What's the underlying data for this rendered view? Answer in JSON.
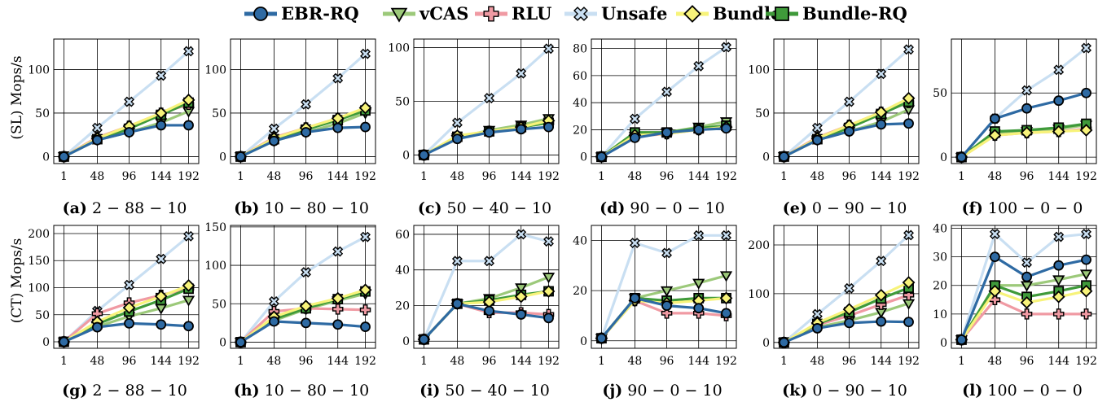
{
  "legend": [
    {
      "name": "EBR-RQ",
      "color": "#2e6aa3",
      "marker": "circle"
    },
    {
      "name": "vCAS",
      "color": "#9cc97a",
      "marker": "triangle-down"
    },
    {
      "name": "RLU",
      "color": "#f09aa3",
      "marker": "plus"
    },
    {
      "name": "Unsafe",
      "color": "#c9dff2",
      "marker": "x-cross"
    },
    {
      "name": "Bundle",
      "color": "#f7f37a",
      "marker": "diamond"
    },
    {
      "name": "Bundle-RQ",
      "color": "#3f9a3a",
      "marker": "square"
    }
  ],
  "row_labels": [
    "(SL)  Mops/s",
    "(CT)  Mops/s"
  ],
  "chart_data": [
    {
      "type": "line",
      "caption_letter": "(a)",
      "caption_text": "2 − 88 − 10",
      "categories": [
        "1",
        "48",
        "96",
        "144",
        "192"
      ],
      "ylim": [
        -8,
        135
      ],
      "yticks": [
        0,
        50,
        100
      ],
      "series": [
        {
          "name": "EBR-RQ",
          "values": [
            0,
            19,
            28,
            36,
            36
          ]
        },
        {
          "name": "vCAS",
          "values": [
            0,
            19,
            28,
            39,
            52
          ]
        },
        {
          "name": "RLU",
          "values": [
            0,
            22,
            35,
            50,
            60
          ]
        },
        {
          "name": "Unsafe",
          "values": [
            0,
            33,
            63,
            93,
            121
          ]
        },
        {
          "name": "Bundle",
          "values": [
            0,
            21,
            35,
            50,
            65
          ]
        },
        {
          "name": "Bundle-RQ",
          "values": [
            0,
            20,
            32,
            48,
            62
          ]
        }
      ]
    },
    {
      "type": "line",
      "caption_letter": "(b)",
      "caption_text": "10 − 80 − 10",
      "categories": [
        "1",
        "48",
        "96",
        "144",
        "192"
      ],
      "ylim": [
        -8,
        135
      ],
      "yticks": [
        0,
        50,
        100
      ],
      "series": [
        {
          "name": "EBR-RQ",
          "values": [
            0,
            18,
            28,
            33,
            34
          ]
        },
        {
          "name": "vCAS",
          "values": [
            0,
            18,
            28,
            38,
            50
          ]
        },
        {
          "name": "RLU",
          "values": [
            0,
            22,
            33,
            44,
            54
          ]
        },
        {
          "name": "Unsafe",
          "values": [
            0,
            32,
            60,
            90,
            118
          ]
        },
        {
          "name": "Bundle",
          "values": [
            0,
            21,
            33,
            44,
            56
          ]
        },
        {
          "name": "Bundle-RQ",
          "values": [
            0,
            20,
            31,
            42,
            53
          ]
        }
      ]
    },
    {
      "type": "line",
      "caption_letter": "(c)",
      "caption_text": "50 − 40 − 10",
      "categories": [
        "1",
        "48",
        "96",
        "144",
        "192"
      ],
      "ylim": [
        -8,
        108
      ],
      "yticks": [
        0,
        50,
        100
      ],
      "series": [
        {
          "name": "EBR-RQ",
          "values": [
            0,
            15,
            21,
            24,
            26
          ]
        },
        {
          "name": "vCAS",
          "values": [
            0,
            16,
            23,
            28,
            34
          ]
        },
        {
          "name": "RLU",
          "values": [
            0,
            17,
            22,
            26,
            30
          ]
        },
        {
          "name": "Unsafe",
          "values": [
            0,
            30,
            53,
            76,
            99
          ]
        },
        {
          "name": "Bundle",
          "values": [
            0,
            18,
            22,
            26,
            32
          ]
        },
        {
          "name": "Bundle-RQ",
          "values": [
            0,
            17,
            22,
            26,
            30
          ]
        }
      ]
    },
    {
      "type": "line",
      "caption_letter": "(d)",
      "caption_text": "90 − 0 − 10",
      "categories": [
        "1",
        "48",
        "96",
        "144",
        "192"
      ],
      "ylim": [
        -5,
        87
      ],
      "yticks": [
        0,
        20,
        40,
        60,
        80
      ],
      "series": [
        {
          "name": "EBR-RQ",
          "values": [
            0,
            14,
            18,
            20,
            21
          ]
        },
        {
          "name": "vCAS",
          "values": [
            0,
            15,
            18,
            22,
            26
          ]
        },
        {
          "name": "RLU",
          "values": [
            0,
            15,
            17,
            20,
            22
          ]
        },
        {
          "name": "Unsafe",
          "values": [
            0,
            28,
            48,
            67,
            81
          ]
        },
        {
          "name": "Bundle",
          "values": [
            0,
            16,
            17,
            20,
            22
          ]
        },
        {
          "name": "Bundle-RQ",
          "values": [
            0,
            18,
            18,
            21,
            23
          ]
        }
      ]
    },
    {
      "type": "line",
      "caption_letter": "(e)",
      "caption_text": "0 − 90 − 10",
      "categories": [
        "1",
        "48",
        "96",
        "144",
        "192"
      ],
      "ylim": [
        -8,
        135
      ],
      "yticks": [
        0,
        50,
        100
      ],
      "series": [
        {
          "name": "EBR-RQ",
          "values": [
            0,
            19,
            29,
            37,
            38
          ]
        },
        {
          "name": "vCAS",
          "values": [
            0,
            19,
            29,
            40,
            54
          ]
        },
        {
          "name": "RLU",
          "values": [
            0,
            22,
            36,
            51,
            62
          ]
        },
        {
          "name": "Unsafe",
          "values": [
            0,
            33,
            63,
            95,
            123
          ]
        },
        {
          "name": "Bundle",
          "values": [
            0,
            21,
            36,
            51,
            67
          ]
        },
        {
          "name": "Bundle-RQ",
          "values": [
            0,
            20,
            33,
            49,
            63
          ]
        }
      ]
    },
    {
      "type": "line",
      "caption_letter": "(f)",
      "caption_text": "100 − 0 − 0",
      "categories": [
        "1",
        "48",
        "96",
        "144",
        "192"
      ],
      "ylim": [
        -5,
        92
      ],
      "yticks": [
        0,
        50
      ],
      "series": [
        {
          "name": "EBR-RQ",
          "values": [
            0,
            30,
            38,
            44,
            50
          ]
        },
        {
          "name": "vCAS",
          "values": [
            0,
            18,
            20,
            22,
            25
          ]
        },
        {
          "name": "RLU",
          "values": [
            0,
            17,
            19,
            20,
            22
          ]
        },
        {
          "name": "Unsafe",
          "values": [
            0,
            30,
            52,
            68,
            85
          ]
        },
        {
          "name": "Bundle",
          "values": [
            0,
            17,
            19,
            20,
            21
          ]
        },
        {
          "name": "Bundle-RQ",
          "values": [
            0,
            20,
            21,
            23,
            26
          ]
        }
      ]
    },
    {
      "type": "line",
      "caption_letter": "(g)",
      "caption_text": "2 − 88 − 10",
      "categories": [
        "1",
        "48",
        "96",
        "144",
        "192"
      ],
      "ylim": [
        -12,
        215
      ],
      "yticks": [
        0,
        50,
        100,
        150,
        200
      ],
      "series": [
        {
          "name": "EBR-RQ",
          "values": [
            0,
            27,
            34,
            32,
            29
          ]
        },
        {
          "name": "vCAS",
          "values": [
            0,
            28,
            47,
            62,
            77
          ]
        },
        {
          "name": "RLU",
          "values": [
            0,
            52,
            72,
            86,
            99
          ]
        },
        {
          "name": "Unsafe",
          "values": [
            0,
            57,
            105,
            153,
            195
          ]
        },
        {
          "name": "Bundle",
          "values": [
            0,
            37,
            63,
            84,
            104
          ]
        },
        {
          "name": "Bundle-RQ",
          "values": [
            0,
            33,
            56,
            77,
            98
          ]
        }
      ]
    },
    {
      "type": "line",
      "caption_letter": "(h)",
      "caption_text": "10 − 80 − 10",
      "categories": [
        "1",
        "48",
        "96",
        "144",
        "192"
      ],
      "ylim": [
        -8,
        152
      ],
      "yticks": [
        0,
        50,
        100,
        150
      ],
      "series": [
        {
          "name": "EBR-RQ",
          "values": [
            0,
            27,
            25,
            23,
            20
          ]
        },
        {
          "name": "vCAS",
          "values": [
            0,
            28,
            43,
            54,
            63
          ]
        },
        {
          "name": "RLU",
          "values": [
            0,
            40,
            44,
            43,
            42
          ]
        },
        {
          "name": "Unsafe",
          "values": [
            0,
            53,
            91,
            118,
            137
          ]
        },
        {
          "name": "Bundle",
          "values": [
            0,
            33,
            47,
            57,
            68
          ]
        },
        {
          "name": "Bundle-RQ",
          "values": [
            0,
            30,
            44,
            56,
            66
          ]
        }
      ]
    },
    {
      "type": "line",
      "caption_letter": "(i)",
      "caption_text": "50 − 40 − 10",
      "categories": [
        "1",
        "48",
        "96",
        "144",
        "192"
      ],
      "ylim": [
        -4,
        65
      ],
      "yticks": [
        0,
        20,
        40,
        60
      ],
      "series": [
        {
          "name": "EBR-RQ",
          "values": [
            1,
            21,
            17,
            15,
            13
          ]
        },
        {
          "name": "vCAS",
          "values": [
            1,
            21,
            24,
            30,
            36
          ]
        },
        {
          "name": "RLU",
          "values": [
            1,
            21,
            16,
            16,
            15
          ]
        },
        {
          "name": "Unsafe",
          "values": [
            1,
            45,
            45,
            60,
            56
          ]
        },
        {
          "name": "Bundle",
          "values": [
            1,
            21,
            22,
            25,
            28
          ]
        },
        {
          "name": "Bundle-RQ",
          "values": [
            1,
            21,
            23,
            26,
            28
          ]
        }
      ]
    },
    {
      "type": "line",
      "caption_letter": "(j)",
      "caption_text": "90 − 0 − 10",
      "categories": [
        "1",
        "48",
        "96",
        "144",
        "192"
      ],
      "ylim": [
        -3,
        46
      ],
      "yticks": [
        0,
        20,
        40
      ],
      "series": [
        {
          "name": "EBR-RQ",
          "values": [
            1,
            17,
            14,
            13,
            11
          ]
        },
        {
          "name": "vCAS",
          "values": [
            1,
            17,
            20,
            23,
            26
          ]
        },
        {
          "name": "RLU",
          "values": [
            1,
            16,
            11,
            11,
            10
          ]
        },
        {
          "name": "Unsafe",
          "values": [
            1,
            39,
            35,
            42,
            42
          ]
        },
        {
          "name": "Bundle",
          "values": [
            1,
            16,
            15,
            16,
            17
          ]
        },
        {
          "name": "Bundle-RQ",
          "values": [
            1,
            17,
            16,
            17,
            17
          ]
        }
      ]
    },
    {
      "type": "line",
      "caption_letter": "(k)",
      "caption_text": "0 − 90 − 10",
      "categories": [
        "1",
        "48",
        "96",
        "144",
        "192"
      ],
      "ylim": [
        -12,
        240
      ],
      "yticks": [
        0,
        100,
        200
      ],
      "series": [
        {
          "name": "EBR-RQ",
          "values": [
            0,
            29,
            40,
            43,
            42
          ]
        },
        {
          "name": "vCAS",
          "values": [
            0,
            31,
            45,
            62,
            80
          ]
        },
        {
          "name": "RLU",
          "values": [
            0,
            36,
            55,
            78,
            97
          ]
        },
        {
          "name": "Unsafe",
          "values": [
            0,
            58,
            111,
            167,
            220
          ]
        },
        {
          "name": "Bundle",
          "values": [
            0,
            40,
            68,
            97,
            123
          ]
        },
        {
          "name": "Bundle-RQ",
          "values": [
            0,
            38,
            62,
            90,
            112
          ]
        }
      ]
    },
    {
      "type": "line",
      "caption_letter": "(l)",
      "caption_text": "100 − 0 − 0",
      "categories": [
        "1",
        "48",
        "96",
        "144",
        "192"
      ],
      "ylim": [
        -2,
        41
      ],
      "yticks": [
        0,
        10,
        20,
        30,
        40
      ],
      "series": [
        {
          "name": "EBR-RQ",
          "values": [
            1,
            30,
            23,
            27,
            29
          ]
        },
        {
          "name": "vCAS",
          "values": [
            1,
            20,
            20,
            22,
            24
          ]
        },
        {
          "name": "RLU",
          "values": [
            1,
            15,
            10,
            10,
            10
          ]
        },
        {
          "name": "Unsafe",
          "values": [
            1,
            38,
            28,
            37,
            38
          ]
        },
        {
          "name": "Bundle",
          "values": [
            1,
            18,
            14,
            16,
            18
          ]
        },
        {
          "name": "Bundle-RQ",
          "values": [
            1,
            20,
            16,
            18,
            20
          ]
        }
      ]
    }
  ]
}
